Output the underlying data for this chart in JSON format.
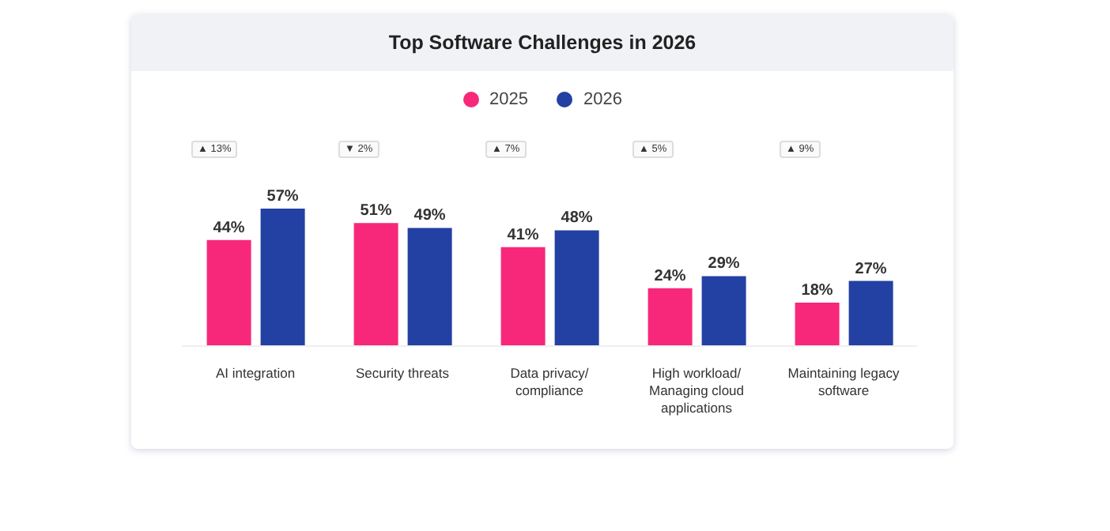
{
  "chart_data": {
    "type": "bar",
    "title": "Top Software Challenges in 2026",
    "categories": [
      "AI integration",
      "Security threats",
      "Data privacy/ compliance",
      "High workload/ Managing cloud applications",
      "Maintaining legacy software"
    ],
    "series": [
      {
        "name": "2025",
        "color": "#f7287a",
        "values": [
          44,
          51,
          41,
          24,
          18
        ],
        "value_labels": [
          "44%",
          "51%",
          "41%",
          "24%",
          "18%"
        ]
      },
      {
        "name": "2026",
        "color": "#2340a3",
        "values": [
          57,
          49,
          48,
          29,
          27
        ],
        "value_labels": [
          "57%",
          "49%",
          "48%",
          "29%",
          "27%"
        ]
      }
    ],
    "tick_labels": "x",
    "legend": "top",
    "grid": false,
    "annotations": [
      "▲ 13%",
      "▼ 2%",
      "▲ 7%",
      "▲ 5%",
      "▲ 9%"
    ]
  }
}
